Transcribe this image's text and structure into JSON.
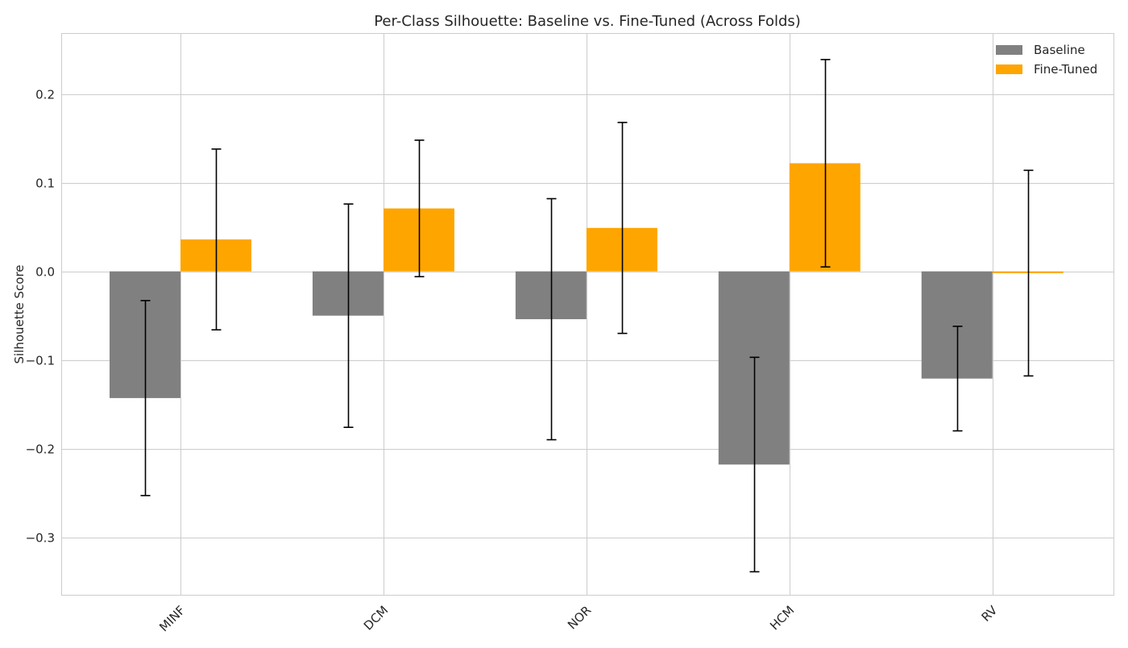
{
  "chart_data": {
    "type": "bar",
    "title": "Per-Class Silhouette: Baseline vs. Fine-Tuned (Across Folds)",
    "xlabel": "",
    "ylabel": "Silhouette Score",
    "categories": [
      "MINF",
      "DCM",
      "NOR",
      "HCM",
      "RV"
    ],
    "ylim": [
      -0.365,
      0.268
    ],
    "yticks": [
      -0.3,
      -0.2,
      -0.1,
      0.0,
      0.1,
      0.2
    ],
    "ytick_labels": [
      "−0.3",
      "−0.2",
      "−0.1",
      "0.0",
      "0.1",
      "0.2"
    ],
    "grid": true,
    "legend_position": "top-right",
    "series": [
      {
        "name": "Baseline",
        "color": "#808080",
        "values": [
          -0.143,
          -0.05,
          -0.054,
          -0.218,
          -0.121
        ],
        "errors": [
          0.11,
          0.126,
          0.136,
          0.121,
          0.059
        ]
      },
      {
        "name": "Fine-Tuned",
        "color": "#ffa500",
        "values": [
          0.036,
          0.071,
          0.049,
          0.122,
          -0.002
        ],
        "errors": [
          0.102,
          0.077,
          0.119,
          0.117,
          0.116
        ]
      }
    ]
  }
}
